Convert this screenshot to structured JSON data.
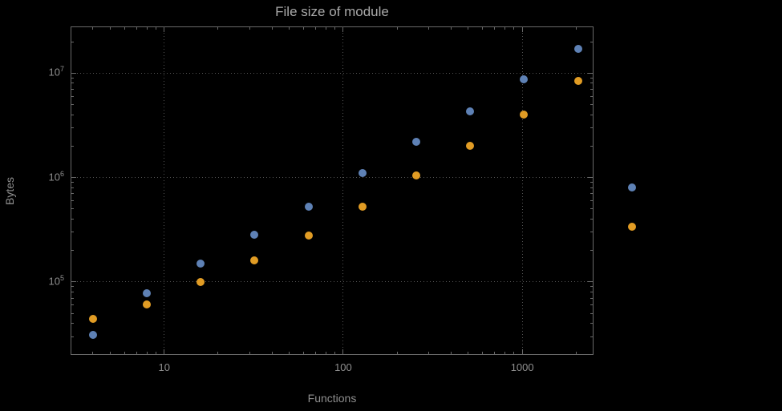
{
  "page": {
    "background": "#000000"
  },
  "chart_data": {
    "type": "scatter",
    "title": "File size of module",
    "xlabel": "Functions",
    "ylabel": "Bytes",
    "x_scale": "log",
    "y_scale": "log",
    "xlim": [
      3,
      2500
    ],
    "ylim": [
      20000,
      28000000
    ],
    "grid": true,
    "legend": "none",
    "x_ticks": [
      {
        "value": 10,
        "label": "10"
      },
      {
        "value": 100,
        "label": "100"
      },
      {
        "value": 1000,
        "label": "1000"
      }
    ],
    "y_ticks": [
      {
        "value": 100000,
        "base": "10",
        "exp": "5"
      },
      {
        "value": 1000000,
        "base": "10",
        "exp": "6"
      },
      {
        "value": 10000000,
        "base": "10",
        "exp": "7"
      }
    ],
    "x": [
      4,
      8,
      16,
      32,
      64,
      128,
      256,
      512,
      1024,
      2048,
      4096
    ],
    "series": [
      {
        "name": "blue-series",
        "color": "#5e81b5",
        "values": [
          31000,
          78000,
          150000,
          285000,
          530000,
          1100000,
          2200000,
          4300000,
          8700000,
          17000000,
          800000
        ]
      },
      {
        "name": "orange-series",
        "color": "#e19c24",
        "values": [
          44000,
          61000,
          100000,
          160000,
          280000,
          530000,
          1050000,
          2000000,
          4000000,
          8400000,
          340000
        ]
      }
    ],
    "colors": {
      "background": "#000000",
      "frame": "#696969",
      "grid": "#545454",
      "title": "#a9a9a9",
      "labels": "#8f8f8f",
      "ticks": "#8f8f8f"
    }
  }
}
